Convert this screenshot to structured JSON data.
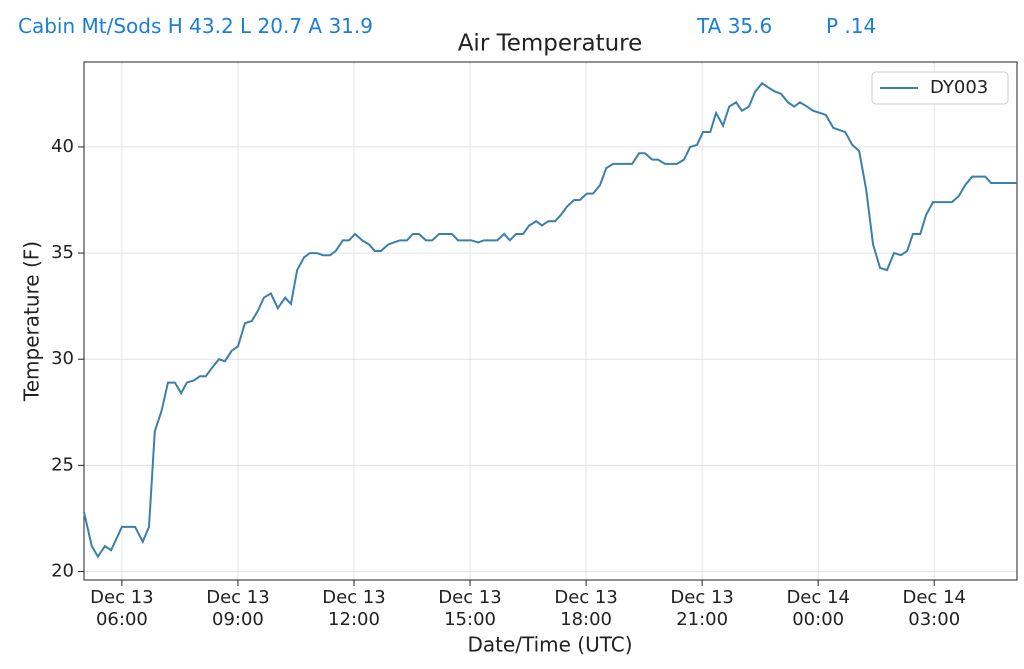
{
  "header": {
    "station": "Cabin Mt/Sods H 43.2 L 20.7 A 31.9",
    "average": "TA 35.6",
    "precip": "P .14"
  },
  "chart_data": {
    "type": "line",
    "title": "Air Temperature",
    "xlabel": "Date/Time (UTC)",
    "ylabel": "Temperature (F)",
    "legend": "upper right",
    "grid": true,
    "xlim": [
      5.02,
      29.14
    ],
    "ylim": [
      19.6,
      44.0
    ],
    "xticks": [
      {
        "value": 6,
        "label": "Dec 13\n06:00"
      },
      {
        "value": 9,
        "label": "Dec 13\n09:00"
      },
      {
        "value": 12,
        "label": "Dec 13\n12:00"
      },
      {
        "value": 15,
        "label": "Dec 13\n15:00"
      },
      {
        "value": 18,
        "label": "Dec 13\n18:00"
      },
      {
        "value": 21,
        "label": "Dec 13\n21:00"
      },
      {
        "value": 24,
        "label": "Dec 14\n00:00"
      },
      {
        "value": 27,
        "label": "Dec 14\n03:00"
      }
    ],
    "yticks": [
      20,
      25,
      30,
      35,
      40
    ],
    "x": [
      5.02,
      5.22,
      5.38,
      5.56,
      5.72,
      6.0,
      6.34,
      6.54,
      6.7,
      6.85,
      7.03,
      7.19,
      7.37,
      7.53,
      7.68,
      7.86,
      8.02,
      8.17,
      8.33,
      8.51,
      8.66,
      8.84,
      9.0,
      9.18,
      9.36,
      9.52,
      9.67,
      9.85,
      10.03,
      10.22,
      10.37,
      10.53,
      10.71,
      10.86,
      11.04,
      11.2,
      11.38,
      11.53,
      11.71,
      11.87,
      12.03,
      12.21,
      12.39,
      12.54,
      12.7,
      12.88,
      13.03,
      13.19,
      13.37,
      13.52,
      13.68,
      13.86,
      14.02,
      14.2,
      14.35,
      14.53,
      14.69,
      14.87,
      15.03,
      15.21,
      15.36,
      15.54,
      15.7,
      15.88,
      16.03,
      16.19,
      16.37,
      16.53,
      16.71,
      16.86,
      17.02,
      17.2,
      17.35,
      17.51,
      17.69,
      17.84,
      18.02,
      18.18,
      18.36,
      18.52,
      18.7,
      18.85,
      19.03,
      19.19,
      19.37,
      19.52,
      19.71,
      19.86,
      20.04,
      20.2,
      20.35,
      20.53,
      20.69,
      20.87,
      21.02,
      21.21,
      21.36,
      21.54,
      21.7,
      21.88,
      22.03,
      22.21,
      22.37,
      22.55,
      22.71,
      22.89,
      23.04,
      23.22,
      23.38,
      23.53,
      23.71,
      23.87,
      24.05,
      24.2,
      24.39,
      24.54,
      24.7,
      24.88,
      25.06,
      25.24,
      25.42,
      25.6,
      25.78,
      25.96,
      26.14,
      26.3,
      26.45,
      26.64,
      26.79,
      26.97,
      27.13,
      27.31,
      27.46,
      27.64,
      27.8,
      27.98,
      28.14,
      28.32,
      28.47,
      28.65,
      28.81,
      29.14
    ],
    "series": [
      {
        "name": "DY003",
        "color": "#3a80aa",
        "values": [
          22.8,
          21.2,
          20.7,
          21.2,
          21.0,
          22.1,
          22.1,
          21.4,
          22.1,
          26.6,
          27.6,
          28.9,
          28.9,
          28.4,
          28.9,
          29.0,
          29.2,
          29.2,
          29.6,
          30.0,
          29.9,
          30.4,
          30.6,
          31.7,
          31.8,
          32.3,
          32.9,
          33.1,
          32.4,
          32.9,
          32.6,
          34.2,
          34.8,
          35.0,
          35.0,
          34.9,
          34.9,
          35.1,
          35.6,
          35.6,
          35.9,
          35.6,
          35.4,
          35.1,
          35.1,
          35.4,
          35.5,
          35.6,
          35.6,
          35.9,
          35.9,
          35.6,
          35.6,
          35.9,
          35.9,
          35.9,
          35.6,
          35.6,
          35.6,
          35.5,
          35.6,
          35.6,
          35.6,
          35.9,
          35.6,
          35.9,
          35.9,
          36.3,
          36.5,
          36.3,
          36.5,
          36.5,
          36.8,
          37.2,
          37.5,
          37.5,
          37.8,
          37.8,
          38.2,
          39.0,
          39.2,
          39.2,
          39.2,
          39.2,
          39.7,
          39.7,
          39.4,
          39.4,
          39.2,
          39.2,
          39.2,
          39.4,
          40.0,
          40.1,
          40.7,
          40.7,
          41.6,
          41.0,
          41.9,
          42.1,
          41.7,
          41.9,
          42.6,
          43.0,
          42.8,
          42.6,
          42.5,
          42.1,
          41.9,
          42.1,
          41.9,
          41.7,
          41.6,
          41.5,
          40.9,
          40.8,
          40.7,
          40.1,
          39.8,
          38.0,
          35.4,
          34.3,
          34.2,
          35.0,
          34.9,
          35.1,
          35.9,
          35.9,
          36.8,
          37.4,
          37.4,
          37.4,
          37.4,
          37.7,
          38.2,
          38.6,
          38.6,
          38.6,
          38.3,
          38.3,
          38.3,
          38.3
        ]
      }
    ]
  }
}
